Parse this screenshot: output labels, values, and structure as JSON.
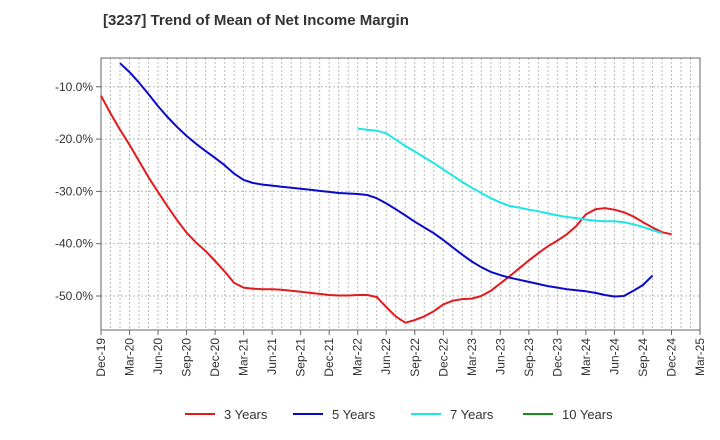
{
  "chart_data": {
    "type": "line",
    "title": "[3237]  Trend of Mean of Net Income Margin",
    "xlabel": "",
    "ylabel": "",
    "x_ticks": [
      "Dec-19",
      "Mar-20",
      "Jun-20",
      "Sep-20",
      "Dec-20",
      "Mar-21",
      "Jun-21",
      "Sep-21",
      "Dec-21",
      "Mar-22",
      "Jun-22",
      "Sep-22",
      "Dec-22",
      "Mar-23",
      "Jun-23",
      "Sep-23",
      "Dec-23",
      "Mar-24",
      "Jun-24",
      "Sep-24",
      "Dec-24",
      "Mar-25"
    ],
    "y_ticks": [
      -10,
      -20,
      -30,
      -40,
      -50
    ],
    "y_tick_labels": [
      "-10.0%",
      "-20.0%",
      "-30.0%",
      "-40.0%",
      "-50.0%"
    ],
    "ylim": [
      -56.5,
      -4.5
    ],
    "grid": true,
    "legend_position": "bottom",
    "series": [
      {
        "name": "3 Years",
        "color": "#e31a1c",
        "start_month_index": 0,
        "values": [
          -11.7,
          -15.1,
          -18.2,
          -21.1,
          -24.2,
          -27.3,
          -30.1,
          -32.9,
          -35.5,
          -37.9,
          -39.8,
          -41.4,
          -43.3,
          -45.3,
          -47.5,
          -48.4,
          -48.6,
          -48.7,
          -48.7,
          -48.8,
          -49.0,
          -49.2,
          -49.4,
          -49.6,
          -49.8,
          -49.9,
          -49.9,
          -49.8,
          -49.8,
          -50.2,
          -52.1,
          -53.9,
          -55.1,
          -54.6,
          -53.9,
          -52.9,
          -51.6,
          -50.9,
          -50.6,
          -50.5,
          -50.0,
          -49.0,
          -47.6,
          -46.2,
          -44.7,
          -43.2,
          -41.8,
          -40.5,
          -39.4,
          -38.2,
          -36.6,
          -34.4,
          -33.4,
          -33.2,
          -33.5,
          -34.0,
          -34.8,
          -35.9,
          -36.9,
          -37.8,
          -38.2
        ]
      },
      {
        "name": "5 Years",
        "color": "#0a0aca",
        "start_month_index": 2,
        "values": [
          -5.5,
          -7.2,
          -9.2,
          -11.4,
          -13.7,
          -15.8,
          -17.7,
          -19.4,
          -20.9,
          -22.3,
          -23.6,
          -25.0,
          -26.6,
          -27.8,
          -28.4,
          -28.7,
          -28.9,
          -29.1,
          -29.3,
          -29.5,
          -29.7,
          -29.9,
          -30.1,
          -30.3,
          -30.4,
          -30.5,
          -30.7,
          -31.3,
          -32.3,
          -33.4,
          -34.6,
          -35.8,
          -36.9,
          -38.0,
          -39.3,
          -40.7,
          -42.1,
          -43.4,
          -44.5,
          -45.4,
          -46.0,
          -46.5,
          -46.9,
          -47.3,
          -47.7,
          -48.1,
          -48.4,
          -48.7,
          -48.9,
          -49.1,
          -49.4,
          -49.8,
          -50.1,
          -50.0,
          -49.0,
          -47.9,
          -46.1
        ]
      },
      {
        "name": "7 Years",
        "color": "#1ee6e6",
        "start_month_index": 27,
        "values": [
          -18.0,
          -18.2,
          -18.4,
          -18.9,
          -20.1,
          -21.3,
          -22.4,
          -23.5,
          -24.6,
          -25.8,
          -27.0,
          -28.2,
          -29.3,
          -30.3,
          -31.3,
          -32.1,
          -32.8,
          -33.1,
          -33.5,
          -33.8,
          -34.2,
          -34.6,
          -34.9,
          -35.1,
          -35.4,
          -35.6,
          -35.7,
          -35.7,
          -35.9,
          -36.3,
          -36.8,
          -37.4,
          -38.0
        ]
      },
      {
        "name": "10 Years",
        "color": "#1a8c1a",
        "start_month_index": 0,
        "values": []
      }
    ]
  }
}
